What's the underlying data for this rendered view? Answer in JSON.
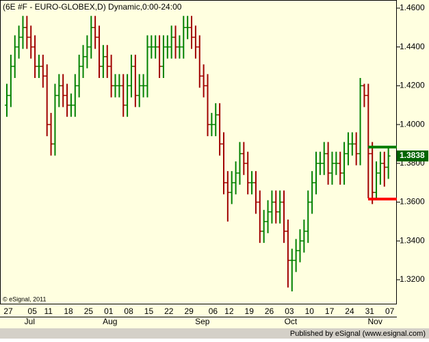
{
  "chart_data": {
    "type": "ohlc",
    "title": "(6E #F - EURO-GLOBEX,D) Dynamic,0:00-24:00",
    "copyright": "© eSignal, 2011",
    "footer": "Published by eSignal (www.esignal.com)",
    "categories": [
      "27",
      null,
      null,
      null,
      null,
      null,
      "05",
      null,
      null,
      null,
      "11",
      null,
      null,
      null,
      null,
      "18",
      null,
      null,
      null,
      null,
      "25",
      null,
      null,
      null,
      null,
      "01",
      null,
      null,
      null,
      null,
      "08",
      null,
      null,
      null,
      null,
      "15",
      null,
      null,
      null,
      null,
      "22",
      null,
      null,
      null,
      null,
      "29",
      null,
      null,
      null,
      null,
      null,
      "06",
      null,
      null,
      null,
      "12",
      null,
      null,
      null,
      null,
      "19",
      null,
      null,
      null,
      null,
      "26",
      null,
      null,
      null,
      null,
      "03",
      null,
      null,
      null,
      null,
      "10",
      null,
      null,
      null,
      null,
      "17",
      null,
      null,
      null,
      null,
      "24",
      null,
      null,
      null,
      null,
      "31",
      null,
      null,
      null,
      null,
      "07"
    ],
    "months": [
      null,
      null,
      null,
      null,
      null,
      "Jul",
      null,
      null,
      null,
      null,
      null,
      null,
      null,
      null,
      null,
      null,
      null,
      null,
      null,
      null,
      null,
      null,
      null,
      null,
      null,
      "Aug",
      null,
      null,
      null,
      null,
      null,
      null,
      null,
      null,
      null,
      null,
      null,
      null,
      null,
      null,
      null,
      null,
      null,
      null,
      null,
      null,
      null,
      null,
      "Sep",
      null,
      null,
      null,
      null,
      null,
      null,
      null,
      null,
      null,
      null,
      null,
      null,
      null,
      null,
      null,
      null,
      null,
      null,
      null,
      null,
      null,
      "Oct",
      null,
      null,
      null,
      null,
      null,
      null,
      null,
      null,
      null,
      null,
      null,
      null,
      null,
      null,
      null,
      null,
      null,
      null,
      null,
      null,
      "Nov",
      null,
      null,
      null,
      null
    ],
    "open": [
      1.41,
      1.415,
      1.43,
      1.44,
      1.445,
      1.45,
      1.445,
      1.44,
      1.43,
      1.43,
      1.425,
      1.4,
      1.39,
      1.415,
      1.42,
      1.415,
      1.41,
      1.41,
      1.42,
      1.43,
      1.435,
      1.44,
      1.45,
      1.445,
      1.43,
      1.435,
      1.43,
      1.42,
      1.42,
      1.42,
      1.41,
      1.42,
      1.43,
      1.415,
      1.42,
      1.42,
      1.44,
      1.44,
      1.44,
      1.43,
      1.44,
      1.44,
      1.445,
      1.44,
      1.44,
      1.45,
      1.45,
      1.445,
      1.44,
      1.425,
      1.42,
      1.4,
      1.4,
      1.405,
      1.39,
      1.37,
      1.365,
      1.37,
      1.375,
      1.385,
      1.38,
      1.37,
      1.37,
      1.36,
      1.345,
      1.35,
      1.355,
      1.36,
      1.355,
      1.36,
      1.345,
      1.33,
      1.33,
      1.335,
      1.34,
      1.345,
      1.36,
      1.37,
      1.38,
      1.38,
      1.385,
      1.375,
      1.38,
      1.38,
      1.375,
      1.385,
      1.39,
      1.39,
      1.385,
      1.42,
      1.415,
      1.385,
      1.365,
      1.375,
      1.38,
      1.378
    ],
    "high": [
      1.421,
      1.436,
      1.446,
      1.451,
      1.456,
      1.456,
      1.451,
      1.446,
      1.436,
      1.436,
      1.431,
      1.406,
      1.421,
      1.426,
      1.426,
      1.421,
      1.416,
      1.426,
      1.436,
      1.441,
      1.446,
      1.456,
      1.456,
      1.451,
      1.441,
      1.441,
      1.436,
      1.426,
      1.426,
      1.426,
      1.426,
      1.436,
      1.436,
      1.426,
      1.426,
      1.446,
      1.446,
      1.446,
      1.446,
      1.446,
      1.446,
      1.451,
      1.451,
      1.446,
      1.456,
      1.456,
      1.456,
      1.451,
      1.446,
      1.431,
      1.426,
      1.406,
      1.411,
      1.411,
      1.396,
      1.376,
      1.376,
      1.381,
      1.391,
      1.391,
      1.386,
      1.376,
      1.376,
      1.366,
      1.356,
      1.361,
      1.366,
      1.366,
      1.366,
      1.366,
      1.351,
      1.336,
      1.341,
      1.346,
      1.351,
      1.366,
      1.376,
      1.386,
      1.386,
      1.391,
      1.391,
      1.386,
      1.386,
      1.386,
      1.391,
      1.396,
      1.396,
      1.396,
      1.424,
      1.421,
      1.421,
      1.391,
      1.381,
      1.386,
      1.386,
      1.388
    ],
    "low": [
      1.404,
      1.409,
      1.424,
      1.434,
      1.439,
      1.439,
      1.434,
      1.424,
      1.424,
      1.419,
      1.394,
      1.384,
      1.384,
      1.409,
      1.409,
      1.404,
      1.404,
      1.404,
      1.414,
      1.424,
      1.429,
      1.434,
      1.439,
      1.424,
      1.424,
      1.424,
      1.414,
      1.414,
      1.414,
      1.404,
      1.404,
      1.414,
      1.409,
      1.409,
      1.414,
      1.414,
      1.434,
      1.434,
      1.424,
      1.424,
      1.434,
      1.434,
      1.434,
      1.434,
      1.434,
      1.444,
      1.439,
      1.434,
      1.419,
      1.414,
      1.394,
      1.394,
      1.394,
      1.384,
      1.364,
      1.35,
      1.359,
      1.364,
      1.369,
      1.374,
      1.364,
      1.364,
      1.354,
      1.339,
      1.339,
      1.344,
      1.349,
      1.349,
      1.349,
      1.339,
      1.316,
      1.314,
      1.324,
      1.329,
      1.334,
      1.339,
      1.354,
      1.364,
      1.374,
      1.374,
      1.369,
      1.369,
      1.374,
      1.369,
      1.369,
      1.379,
      1.384,
      1.379,
      1.379,
      1.409,
      1.362,
      1.359,
      1.362,
      1.369,
      1.368,
      1.372
    ],
    "close": [
      1.415,
      1.43,
      1.44,
      1.445,
      1.45,
      1.445,
      1.44,
      1.43,
      1.43,
      1.425,
      1.4,
      1.39,
      1.415,
      1.42,
      1.415,
      1.41,
      1.41,
      1.42,
      1.43,
      1.435,
      1.44,
      1.45,
      1.445,
      1.43,
      1.435,
      1.43,
      1.42,
      1.42,
      1.42,
      1.41,
      1.42,
      1.43,
      1.415,
      1.42,
      1.42,
      1.44,
      1.44,
      1.44,
      1.43,
      1.44,
      1.44,
      1.445,
      1.44,
      1.44,
      1.45,
      1.45,
      1.445,
      1.44,
      1.425,
      1.42,
      1.4,
      1.4,
      1.405,
      1.39,
      1.37,
      1.365,
      1.37,
      1.375,
      1.385,
      1.38,
      1.37,
      1.37,
      1.36,
      1.345,
      1.35,
      1.355,
      1.36,
      1.355,
      1.36,
      1.345,
      1.33,
      1.33,
      1.335,
      1.34,
      1.345,
      1.36,
      1.37,
      1.38,
      1.38,
      1.385,
      1.375,
      1.38,
      1.38,
      1.375,
      1.385,
      1.39,
      1.39,
      1.385,
      1.42,
      1.415,
      1.385,
      1.365,
      1.375,
      1.38,
      1.378,
      1.3838
    ],
    "up_color": "#008000",
    "down_color": "#a00000",
    "levels": [
      {
        "value": 1.3884,
        "color": "#008000"
      },
      {
        "value": 1.3616,
        "color": "#ff0000"
      }
    ],
    "last_color": "#006400",
    "ylim": [
      1.3073,
      1.4642
    ],
    "yticks": [
      {
        "value": 1.46,
        "label": "1.4600"
      },
      {
        "value": 1.44,
        "label": "1.4400"
      },
      {
        "value": 1.42,
        "label": "1.4200"
      },
      {
        "value": 1.4,
        "label": "1.4000"
      },
      {
        "value": 1.38,
        "label": "1.3800"
      },
      {
        "value": 1.36,
        "label": "1.3600"
      },
      {
        "value": 1.34,
        "label": "1.3400"
      },
      {
        "value": 1.32,
        "label": "1.3200"
      }
    ]
  }
}
